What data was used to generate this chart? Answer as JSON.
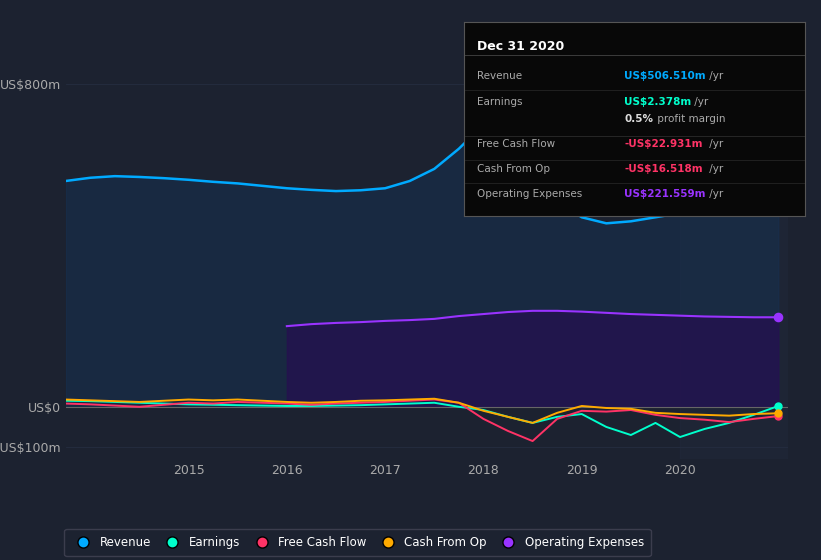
{
  "bg_color": "#1c2230",
  "plot_bg_color": "#1c2230",
  "info_box_bg": "#080808",
  "info_box_border": "#555555",
  "title": "Dec 31 2020",
  "ylim": [
    -130,
    870
  ],
  "yticks": [
    -100,
    0,
    800
  ],
  "ytick_labels": [
    "-US$100m",
    "US$0",
    "US$800m"
  ],
  "x_data": [
    2013.75,
    2014.0,
    2014.25,
    2014.5,
    2014.75,
    2015.0,
    2015.25,
    2015.5,
    2015.75,
    2016.0,
    2016.25,
    2016.5,
    2016.75,
    2017.0,
    2017.25,
    2017.5,
    2017.75,
    2018.0,
    2018.25,
    2018.5,
    2018.75,
    2019.0,
    2019.25,
    2019.5,
    2019.75,
    2020.0,
    2020.25,
    2020.5,
    2020.75,
    2021.0
  ],
  "revenue": [
    560,
    568,
    572,
    570,
    567,
    563,
    558,
    554,
    548,
    542,
    538,
    535,
    537,
    542,
    560,
    590,
    640,
    700,
    660,
    590,
    510,
    470,
    455,
    460,
    470,
    480,
    488,
    492,
    500,
    506
  ],
  "earnings": [
    15,
    14,
    12,
    10,
    8,
    6,
    5,
    4,
    3,
    2,
    2,
    3,
    4,
    6,
    8,
    10,
    0,
    -8,
    -25,
    -40,
    -25,
    -18,
    -50,
    -70,
    -40,
    -75,
    -55,
    -40,
    -20,
    2
  ],
  "free_cash": [
    8,
    6,
    3,
    0,
    5,
    10,
    8,
    12,
    10,
    8,
    5,
    8,
    10,
    12,
    15,
    18,
    10,
    -30,
    -60,
    -85,
    -30,
    -10,
    -12,
    -8,
    -20,
    -28,
    -32,
    -38,
    -30,
    -23
  ],
  "cash_from_op": [
    18,
    16,
    14,
    12,
    15,
    18,
    16,
    18,
    15,
    12,
    10,
    12,
    15,
    16,
    18,
    20,
    10,
    -10,
    -25,
    -40,
    -15,
    2,
    -3,
    -5,
    -15,
    -18,
    -20,
    -22,
    -18,
    -16
  ],
  "op_expenses": [
    0,
    0,
    0,
    0,
    0,
    0,
    0,
    0,
    0,
    200,
    205,
    208,
    210,
    213,
    215,
    218,
    225,
    230,
    235,
    238,
    238,
    236,
    233,
    230,
    228,
    226,
    224,
    223,
    222,
    222
  ],
  "revenue_color": "#00aaff",
  "earnings_color": "#00ffcc",
  "free_cash_color": "#ff3366",
  "cash_from_op_color": "#ffaa00",
  "op_expenses_color": "#9933ff",
  "fill_revenue_color": "#163050",
  "fill_op_expenses_color": "#251050",
  "shaded_region_start": 2020.0,
  "shaded_region_color": "#2a3550",
  "xtick_years": [
    2015,
    2016,
    2017,
    2018,
    2019,
    2020
  ],
  "grid_color": "#252d40",
  "zero_line_color": "#666666",
  "legend_items": [
    {
      "label": "Revenue",
      "color": "#00aaff"
    },
    {
      "label": "Earnings",
      "color": "#00ffcc"
    },
    {
      "label": "Free Cash Flow",
      "color": "#ff3366"
    },
    {
      "label": "Cash From Op",
      "color": "#ffaa00"
    },
    {
      "label": "Operating Expenses",
      "color": "#9933ff"
    }
  ],
  "info_rows": [
    {
      "label": "Revenue",
      "value": "US$506.510m",
      "suffix": " /yr",
      "value_color": "#00aaff",
      "divider_after": false
    },
    {
      "label": "Earnings",
      "value": "US$2.378m",
      "suffix": " /yr",
      "value_color": "#00ffcc",
      "divider_after": false
    },
    {
      "label": "",
      "value": "0.5%",
      "suffix": " profit margin",
      "value_color": "#dddddd",
      "divider_after": true
    },
    {
      "label": "Free Cash Flow",
      "value": "-US$22.931m",
      "suffix": " /yr",
      "value_color": "#ff3366",
      "divider_after": false
    },
    {
      "label": "Cash From Op",
      "value": "-US$16.518m",
      "suffix": " /yr",
      "value_color": "#ff3366",
      "divider_after": false
    },
    {
      "label": "Operating Expenses",
      "value": "US$221.559m",
      "suffix": " /yr",
      "value_color": "#9933ff",
      "divider_after": false
    }
  ]
}
